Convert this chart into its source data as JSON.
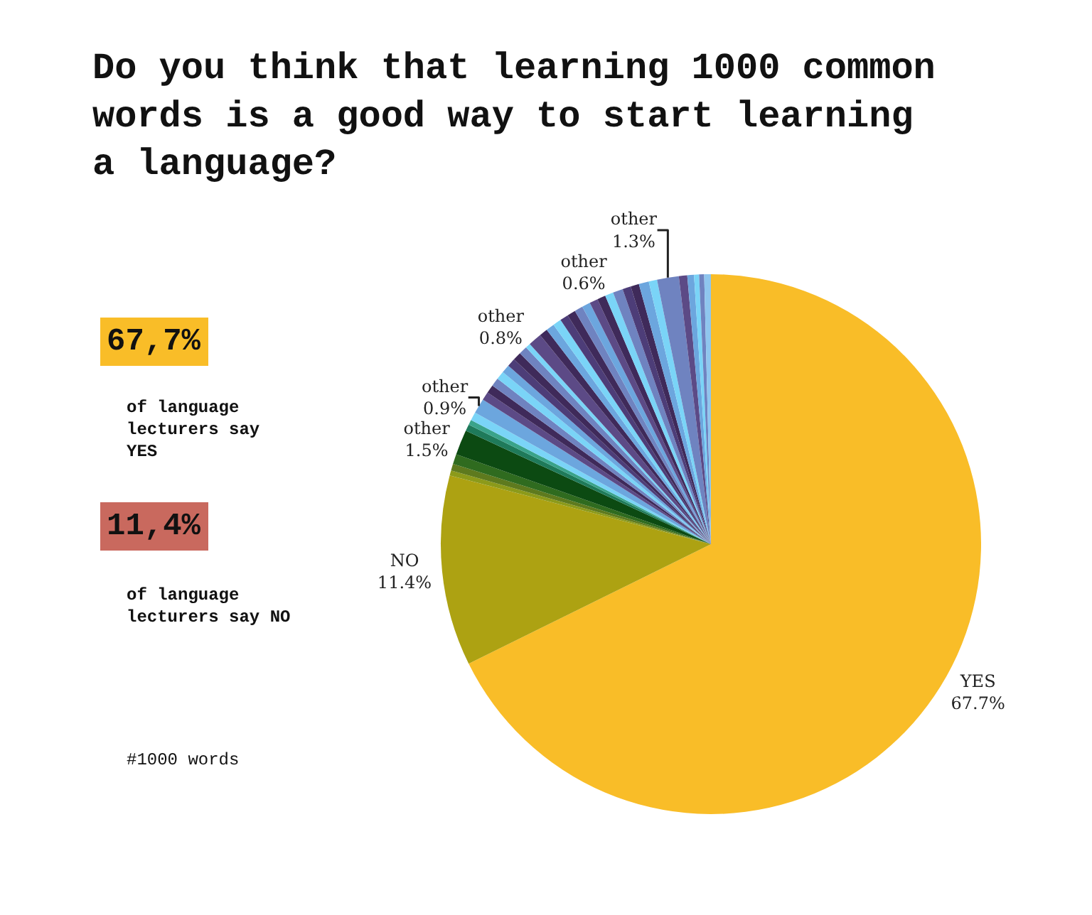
{
  "chart_data": {
    "type": "pie",
    "title": "Do you think that learning 1000 common words is a good way to start learning a language?",
    "categories": [
      "YES",
      "NO",
      null,
      null,
      null,
      "other",
      null,
      null,
      null,
      "other",
      null,
      null,
      null,
      null,
      null,
      null,
      null,
      null,
      null,
      "other",
      null,
      null,
      null,
      null,
      null,
      null,
      null,
      null,
      null,
      null,
      "other",
      null,
      null,
      null,
      null,
      "other",
      null,
      null,
      null,
      null,
      null
    ],
    "values": [
      67.7,
      11.4,
      0.3,
      0.4,
      0.6,
      1.5,
      0.4,
      0.3,
      0.5,
      0.9,
      0.5,
      0.5,
      0.5,
      0.5,
      0.5,
      0.5,
      0.5,
      0.5,
      0.3,
      0.8,
      0.5,
      0.5,
      0.5,
      0.5,
      0.5,
      0.5,
      0.5,
      0.5,
      0.5,
      0.5,
      0.6,
      0.5,
      0.5,
      0.6,
      0.5,
      1.3,
      0.5,
      0.4,
      0.3,
      0.3,
      0.4
    ],
    "value_labels": [
      "67.7%",
      "11.4%",
      null,
      null,
      null,
      "1.5%",
      null,
      null,
      null,
      "0.9%",
      null,
      null,
      null,
      null,
      null,
      null,
      null,
      null,
      null,
      "0.8%",
      null,
      null,
      null,
      null,
      null,
      null,
      null,
      null,
      null,
      null,
      "0.6%",
      null,
      null,
      null,
      null,
      "1.3%",
      null,
      null,
      null,
      null,
      null
    ],
    "colors": [
      "#f9bd28",
      "#ada212",
      "#8c9a1a",
      "#5e7a1e",
      "#2f6b1f",
      "#0c4a12",
      "#1f7a5a",
      "#3aa38a",
      "#7ad4f7",
      "#6ca6de",
      "#5c4a86",
      "#3f2a5a",
      "#6f83c0",
      "#7ad4f7",
      "#6ca6de",
      "#4d3d78",
      "#3f2a5a",
      "#6f83c0",
      "#7ad4f7",
      "#5c4a86",
      "#3f2a5a",
      "#6ca6de",
      "#7ad4f7",
      "#4d3d78",
      "#3f2a5a",
      "#6f83c0",
      "#6ca6de",
      "#5c4a86",
      "#3f2a5a",
      "#7ad4f7",
      "#6f83c0",
      "#4d3d78",
      "#3f2a5a",
      "#6ca6de",
      "#7ad4f7",
      "#6f83c0",
      "#5c4a86",
      "#6ca6de",
      "#7ad4f7",
      "#6f83c0",
      "#8fc6ee"
    ],
    "annotations": [
      "67,7%",
      "of language lecturers say YES",
      "11,4%",
      "of language lecturers say NO",
      "#1000 words"
    ]
  }
}
